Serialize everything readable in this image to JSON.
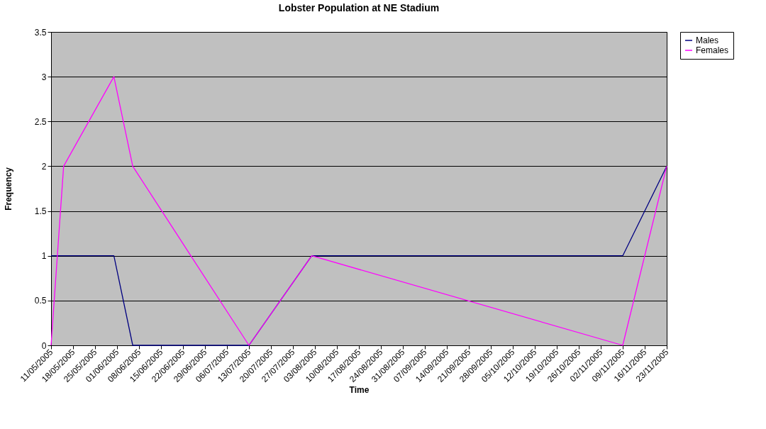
{
  "chart_data": {
    "type": "line",
    "title": "Lobster Population at NE Stadium",
    "xlabel": "Time",
    "ylabel": "Frequency",
    "x": [
      "2005-05-11",
      "2005-05-15",
      "2005-05-31",
      "2005-06-06",
      "2005-07-13",
      "2005-08-02",
      "2005-11-09",
      "2005-11-23"
    ],
    "series": [
      {
        "name": "Males",
        "color": "#000080",
        "values": [
          1,
          1,
          1,
          0,
          0,
          1,
          1,
          2
        ]
      },
      {
        "name": "Females",
        "color": "#ff00ff",
        "values": [
          0,
          2,
          3,
          2,
          0,
          1,
          0,
          2
        ]
      }
    ],
    "xlim": [
      "2005-05-11",
      "2005-11-23"
    ],
    "xticks": [
      {
        "value": "2005-05-11",
        "label": "11/05/2005"
      },
      {
        "value": "2005-05-18",
        "label": "18/05/2005"
      },
      {
        "value": "2005-05-25",
        "label": "25/05/2005"
      },
      {
        "value": "2005-06-01",
        "label": "01/06/2005"
      },
      {
        "value": "2005-06-08",
        "label": "08/06/2005"
      },
      {
        "value": "2005-06-15",
        "label": "15/06/2005"
      },
      {
        "value": "2005-06-22",
        "label": "22/06/2005"
      },
      {
        "value": "2005-06-29",
        "label": "29/06/2005"
      },
      {
        "value": "2005-07-06",
        "label": "06/07/2005"
      },
      {
        "value": "2005-07-13",
        "label": "13/07/2005"
      },
      {
        "value": "2005-07-20",
        "label": "20/07/2005"
      },
      {
        "value": "2005-07-27",
        "label": "27/07/2005"
      },
      {
        "value": "2005-08-03",
        "label": "03/08/2005"
      },
      {
        "value": "2005-08-10",
        "label": "10/08/2005"
      },
      {
        "value": "2005-08-17",
        "label": "17/08/2005"
      },
      {
        "value": "2005-08-24",
        "label": "24/08/2005"
      },
      {
        "value": "2005-08-31",
        "label": "31/08/2005"
      },
      {
        "value": "2005-09-07",
        "label": "07/09/2005"
      },
      {
        "value": "2005-09-14",
        "label": "14/09/2005"
      },
      {
        "value": "2005-09-21",
        "label": "21/09/2005"
      },
      {
        "value": "2005-09-28",
        "label": "28/09/2005"
      },
      {
        "value": "2005-10-05",
        "label": "05/10/2005"
      },
      {
        "value": "2005-10-12",
        "label": "12/10/2005"
      },
      {
        "value": "2005-10-19",
        "label": "19/10/2005"
      },
      {
        "value": "2005-10-26",
        "label": "26/10/2005"
      },
      {
        "value": "2005-11-02",
        "label": "02/11/2005"
      },
      {
        "value": "2005-11-09",
        "label": "09/11/2005"
      },
      {
        "value": "2005-11-16",
        "label": "16/11/2005"
      },
      {
        "value": "2005-11-23",
        "label": "23/11/2005"
      }
    ],
    "ylim": [
      0,
      3.5
    ],
    "yticks": [
      0,
      0.5,
      1,
      1.5,
      2,
      2.5,
      3,
      3.5
    ],
    "grid": "y",
    "legend": "right",
    "marker": "none",
    "line_style": "solid"
  }
}
